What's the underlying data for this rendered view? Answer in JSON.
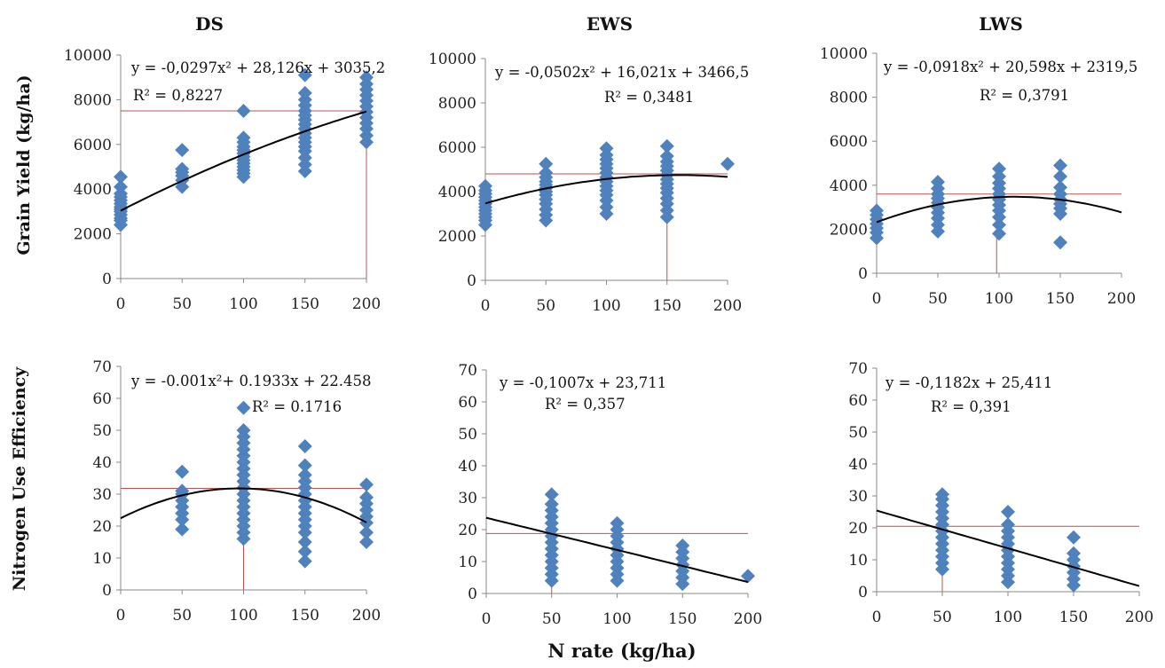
{
  "column_titles": [
    "DS",
    "EWS",
    "LWS"
  ],
  "ylabel_top": "Grain Yield (kg/ha)",
  "ylabel_bottom": "Nitrogen Use Efficiency",
  "xlabel": "N rate (kg/ha)",
  "colors": {
    "marker": "#4f81bd",
    "fit": "#000000",
    "ref_line": "#c0504d",
    "axis": "#888888"
  },
  "chart_data": [
    {
      "id": "ds-yield",
      "type": "scatter",
      "title": "DS",
      "ylabel": "Grain Yield (kg/ha)",
      "xlabel": "",
      "xlim": [
        0,
        200
      ],
      "ylim": [
        0,
        10000
      ],
      "xticks": [
        0,
        50,
        100,
        150,
        200
      ],
      "yticks": [
        0,
        2000,
        4000,
        6000,
        8000,
        10000
      ],
      "xtick_labels": [
        "0",
        "50",
        "100",
        "150",
        "200"
      ],
      "ytick_labels": [
        "0",
        "2000",
        "4000",
        "6000",
        "8000",
        "10000"
      ],
      "equation": "y = -0,0297x² + 28,126x + 3035,2",
      "r2": "R² = 0,8227",
      "fit": {
        "kind": "poly2",
        "coef": [
          -0.0297,
          28.126,
          3035.2
        ],
        "x_range": [
          0,
          200
        ]
      },
      "ref_lines": [
        {
          "hline": 7500,
          "x_range": [
            0,
            200
          ]
        },
        {
          "vline": 200,
          "y_range": [
            0,
            7500
          ]
        }
      ],
      "points": [
        {
          "x": 0,
          "y": [
            2400,
            2600,
            2700,
            2850,
            3000,
            3100,
            3200,
            3350,
            3500,
            3650,
            3800,
            4100,
            4550
          ]
        },
        {
          "x": 50,
          "y": [
            4100,
            4400,
            4600,
            4750,
            4900,
            5750
          ]
        },
        {
          "x": 100,
          "y": [
            4550,
            4700,
            4850,
            5000,
            5150,
            5300,
            5450,
            5600,
            5750,
            5900,
            6100,
            6300,
            7500
          ]
        },
        {
          "x": 150,
          "y": [
            4800,
            5100,
            5400,
            5700,
            5900,
            6100,
            6300,
            6500,
            6700,
            6900,
            7100,
            7300,
            7500,
            7750,
            8000,
            8300,
            9100
          ]
        },
        {
          "x": 200,
          "y": [
            6100,
            6400,
            6700,
            6950,
            7200,
            7450,
            7700,
            7950,
            8200,
            8450,
            8700,
            9000
          ]
        }
      ]
    },
    {
      "id": "ews-yield",
      "type": "scatter",
      "title": "EWS",
      "ylabel": "",
      "xlabel": "",
      "xlim": [
        0,
        200
      ],
      "ylim": [
        0,
        10000
      ],
      "xticks": [
        0,
        50,
        100,
        150,
        200
      ],
      "yticks": [
        0,
        2000,
        4000,
        6000,
        8000,
        10000
      ],
      "xtick_labels": [
        "0",
        "50",
        "100",
        "150",
        "200"
      ],
      "ytick_labels": [
        "0",
        "2000",
        "4000",
        "6000",
        "8000",
        "10000"
      ],
      "equation": "y = -0,0502x² + 16,021x + 3466,5",
      "r2": "R² = 0,3481",
      "fit": {
        "kind": "poly2",
        "coef": [
          -0.0502,
          16.021,
          3466.5
        ],
        "x_range": [
          0,
          200
        ]
      },
      "ref_lines": [
        {
          "hline": 4800,
          "x_range": [
            0,
            200
          ]
        },
        {
          "vline": 150,
          "y_range": [
            0,
            4800
          ]
        }
      ],
      "points": [
        {
          "x": 0,
          "y": [
            2500,
            2700,
            2850,
            3000,
            3150,
            3300,
            3450,
            3600,
            3750,
            3900,
            4050,
            4250
          ]
        },
        {
          "x": 50,
          "y": [
            2700,
            2950,
            3200,
            3450,
            3650,
            3850,
            4000,
            4150,
            4300,
            4450,
            4650,
            4850,
            5250
          ]
        },
        {
          "x": 100,
          "y": [
            3000,
            3300,
            3600,
            3850,
            4050,
            4250,
            4450,
            4650,
            4850,
            5050,
            5250,
            5450,
            5650,
            5950
          ]
        },
        {
          "x": 150,
          "y": [
            2850,
            3150,
            3450,
            3700,
            3950,
            4150,
            4350,
            4550,
            4750,
            4950,
            5150,
            5350,
            5600,
            6050
          ]
        },
        {
          "x": 200,
          "y": [
            5250
          ]
        }
      ]
    },
    {
      "id": "lws-yield",
      "type": "scatter",
      "title": "LWS",
      "ylabel": "",
      "xlabel": "",
      "xlim": [
        0,
        200
      ],
      "ylim": [
        0,
        10000
      ],
      "xticks": [
        0,
        50,
        100,
        150,
        200
      ],
      "yticks": [
        0,
        2000,
        4000,
        6000,
        8000,
        10000
      ],
      "xtick_labels": [
        "0",
        "50",
        "100",
        "150",
        "200"
      ],
      "ytick_labels": [
        "0",
        "2000",
        "4000",
        "6000",
        "8000",
        "10000"
      ],
      "equation": "y = -0,0918x² + 20,598x + 2319,5",
      "r2": "R² = 0,3791",
      "fit": {
        "kind": "poly2",
        "coef": [
          -0.0918,
          20.598,
          2319.5
        ],
        "x_range": [
          0,
          200
        ]
      },
      "ref_lines": [
        {
          "hline": 3600,
          "x_range": [
            0,
            200
          ]
        },
        {
          "vline": 98,
          "y_range": [
            0,
            3600
          ]
        }
      ],
      "points": [
        {
          "x": 0,
          "y": [
            1600,
            1850,
            2050,
            2250,
            2450,
            2650,
            2850
          ]
        },
        {
          "x": 50,
          "y": [
            1900,
            2200,
            2500,
            2750,
            3000,
            3200,
            3400,
            3600,
            3850,
            4150
          ]
        },
        {
          "x": 100,
          "y": [
            1800,
            2200,
            2550,
            2850,
            3100,
            3350,
            3600,
            3850,
            4100,
            4400,
            4750
          ]
        },
        {
          "x": 150,
          "y": [
            1400,
            2700,
            2950,
            3150,
            3350,
            3600,
            3900,
            4400,
            4900
          ]
        }
      ]
    },
    {
      "id": "ds-nue",
      "type": "scatter",
      "title": "",
      "ylabel": "Nitrogen Use Efficiency",
      "xlabel": "",
      "xlim": [
        0,
        200
      ],
      "ylim": [
        0,
        70
      ],
      "xticks": [
        0,
        50,
        100,
        150,
        200
      ],
      "yticks": [
        0,
        10,
        20,
        30,
        40,
        50,
        60,
        70
      ],
      "xtick_labels": [
        "0",
        "50",
        "100",
        "150",
        "200"
      ],
      "ytick_labels": [
        "0",
        "10",
        "20",
        "30",
        "40",
        "50",
        "60",
        "70"
      ],
      "equation": "y = -0.001x²+ 0.1933x + 22.458",
      "r2": "R² = 0.1716",
      "fit": {
        "kind": "poly2",
        "coef": [
          -0.001,
          0.1933,
          22.458
        ],
        "x_range": [
          0,
          200
        ]
      },
      "ref_lines": [
        {
          "hline": 31.8,
          "x_range": [
            0,
            200
          ]
        },
        {
          "vline": 100,
          "y_range": [
            0,
            31.8
          ]
        }
      ],
      "points": [
        {
          "x": 50,
          "y": [
            19,
            22,
            24,
            26,
            28,
            30,
            31,
            37
          ]
        },
        {
          "x": 100,
          "y": [
            16,
            18,
            20,
            22,
            24,
            26,
            28,
            30,
            32,
            34,
            36,
            38,
            40,
            42,
            44,
            46,
            48,
            50,
            57
          ]
        },
        {
          "x": 150,
          "y": [
            9,
            12,
            15,
            18,
            20,
            22,
            24,
            26,
            28,
            30,
            32,
            34,
            36,
            39,
            45
          ]
        },
        {
          "x": 200,
          "y": [
            15,
            18,
            21,
            23,
            25,
            27,
            29,
            33
          ]
        }
      ]
    },
    {
      "id": "ews-nue",
      "type": "scatter",
      "title": "",
      "ylabel": "",
      "xlabel": "N rate (kg/ha)",
      "xlim": [
        0,
        200
      ],
      "ylim": [
        0,
        70
      ],
      "xticks": [
        0,
        50,
        100,
        150,
        200
      ],
      "yticks": [
        0,
        10,
        20,
        30,
        40,
        50,
        60,
        70
      ],
      "xtick_labels": [
        "0",
        "50",
        "100",
        "150",
        "200"
      ],
      "ytick_labels": [
        "0",
        "10",
        "20",
        "30",
        "40",
        "50",
        "60",
        "70"
      ],
      "equation": "y = -0,1007x + 23,711",
      "r2": "R² = 0,357",
      "fit": {
        "kind": "linear",
        "coef": [
          -0.1007,
          23.711
        ],
        "x_range": [
          0,
          200
        ]
      },
      "ref_lines": [
        {
          "hline": 18.8,
          "x_range": [
            0,
            200
          ]
        },
        {
          "vline": 50,
          "y_range": [
            0,
            18.8
          ]
        }
      ],
      "points": [
        {
          "x": 50,
          "y": [
            4,
            6,
            8,
            10,
            12,
            14,
            16,
            18,
            20,
            22,
            24,
            26,
            28,
            31
          ]
        },
        {
          "x": 100,
          "y": [
            4,
            6,
            8,
            10,
            12,
            14,
            16,
            18,
            20,
            22
          ]
        },
        {
          "x": 150,
          "y": [
            3,
            5,
            7,
            9,
            11,
            13,
            15
          ]
        },
        {
          "x": 200,
          "y": [
            5.5
          ]
        }
      ]
    },
    {
      "id": "lws-nue",
      "type": "scatter",
      "title": "",
      "ylabel": "",
      "xlabel": "",
      "xlim": [
        0,
        200
      ],
      "ylim": [
        0,
        70
      ],
      "xticks": [
        0,
        50,
        100,
        150,
        200
      ],
      "yticks": [
        0,
        10,
        20,
        30,
        40,
        50,
        60,
        70
      ],
      "xtick_labels": [
        "0",
        "50",
        "100",
        "150",
        "200"
      ],
      "ytick_labels": [
        "0",
        "10",
        "20",
        "30",
        "40",
        "50",
        "60",
        "70"
      ],
      "equation": "y = -0,1182x + 25,411",
      "r2": "R² = 0,391",
      "fit": {
        "kind": "linear",
        "coef": [
          -0.1182,
          25.411
        ],
        "x_range": [
          0,
          200
        ]
      },
      "ref_lines": [
        {
          "hline": 20.5,
          "x_range": [
            0,
            200
          ]
        },
        {
          "vline": 50,
          "y_range": [
            0,
            20.5
          ]
        }
      ],
      "points": [
        {
          "x": 50,
          "y": [
            7,
            9,
            11,
            13,
            15,
            17,
            19,
            21,
            23,
            25,
            27,
            29,
            30.5
          ]
        },
        {
          "x": 100,
          "y": [
            3,
            5,
            7,
            9,
            11,
            13,
            15,
            17,
            19,
            21,
            25
          ]
        },
        {
          "x": 150,
          "y": [
            2,
            4,
            6,
            8,
            10,
            12,
            17
          ]
        }
      ]
    }
  ]
}
